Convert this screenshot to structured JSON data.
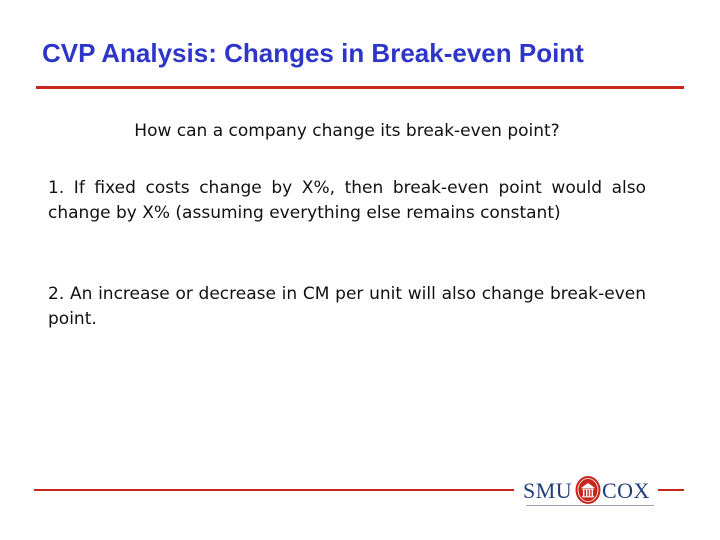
{
  "slide": {
    "title": "CVP Analysis: Changes in Break-even Point",
    "question": "How can a company change its break-even point?",
    "points": [
      "1. If fixed costs change by X%, then break-even point would also change by X% (assuming everything else remains constant)",
      "2. An increase or decrease in CM per unit will also change break-even point."
    ]
  },
  "logo": {
    "left_text": "SMU",
    "right_text": "COX"
  },
  "colors": {
    "title": "#2e36c9",
    "rule": "#c8261c",
    "logo_blue": "#1f3f7a",
    "seal_red": "#c8261c"
  }
}
